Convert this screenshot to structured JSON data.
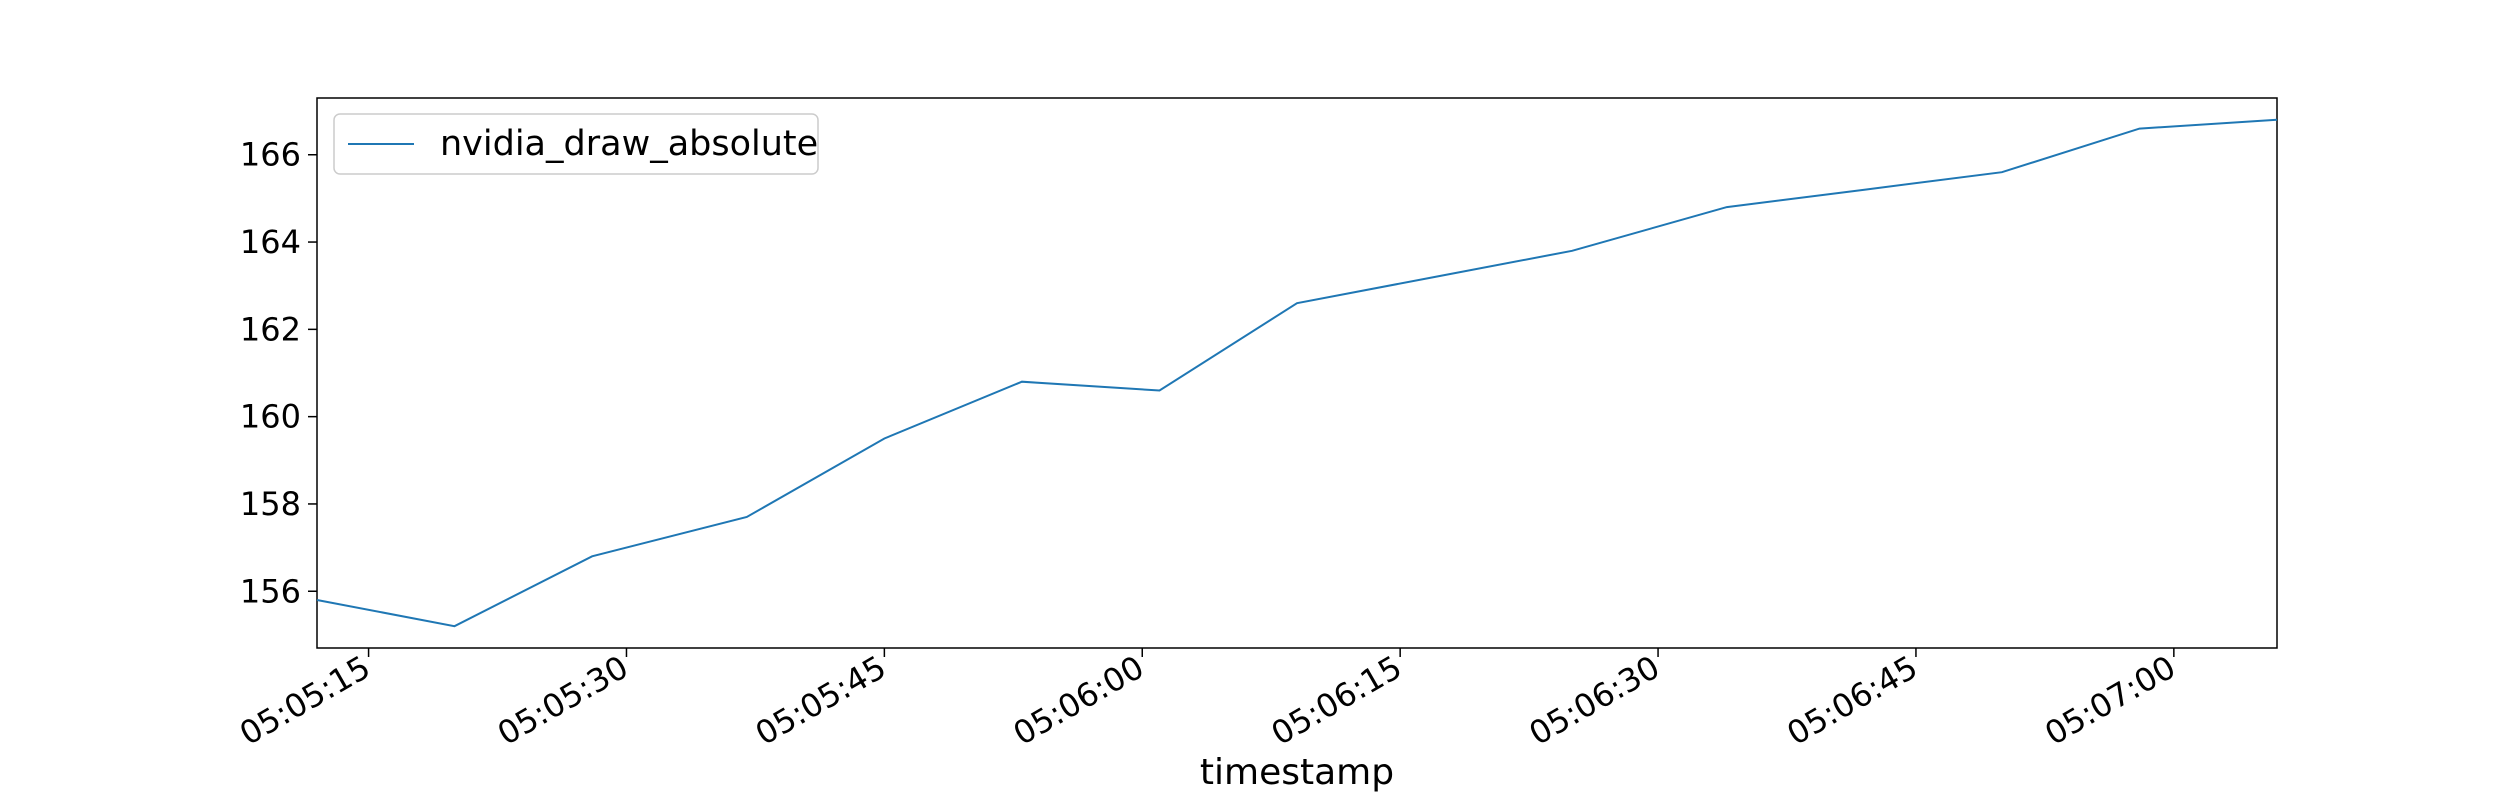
{
  "chart_data": {
    "type": "line",
    "title": "",
    "xlabel": "timestamp",
    "ylabel": "",
    "x_tick_labels": [
      "05:05:15",
      "05:05:30",
      "05:05:45",
      "05:06:00",
      "05:06:15",
      "05:06:30",
      "05:06:45",
      "05:07:00"
    ],
    "y_ticks": [
      156,
      158,
      160,
      162,
      164,
      166
    ],
    "xlim": [
      "05:05:12",
      "05:07:06"
    ],
    "ylim": [
      154.7,
      167.3
    ],
    "legend_position": "top-left",
    "grid": false,
    "series": [
      {
        "name": "nvidia_draw_absolute",
        "color": "#1f77b4",
        "x": [
          "05:05:12",
          "05:05:20",
          "05:05:28",
          "05:05:37",
          "05:05:45",
          "05:05:53",
          "05:06:01",
          "05:06:09",
          "05:06:17",
          "05:06:25",
          "05:06:34",
          "05:06:42",
          "05:06:50",
          "05:06:58",
          "05:07:06"
        ],
        "y": [
          155.8,
          155.2,
          156.8,
          157.7,
          159.5,
          160.8,
          160.6,
          162.6,
          163.2,
          163.8,
          164.8,
          165.2,
          165.6,
          166.6,
          166.8
        ]
      }
    ]
  }
}
